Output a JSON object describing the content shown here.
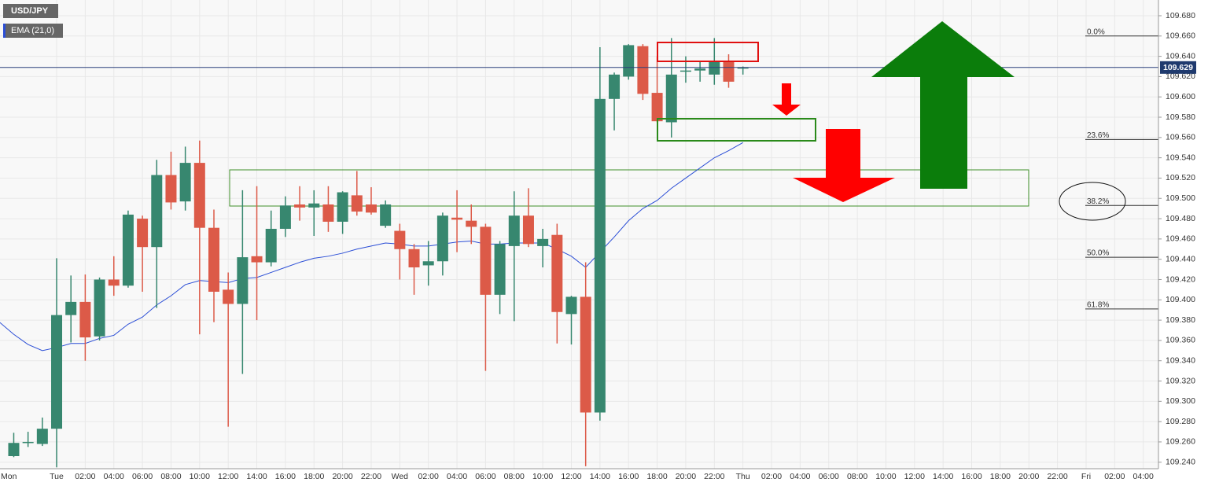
{
  "chart_data": {
    "type": "candlestick",
    "title": "USD/JPY",
    "categories": [
      "Mon",
      null,
      null,
      null,
      "Tue",
      null,
      "02:00",
      null,
      "04:00",
      null,
      "06:00",
      null,
      "08:00",
      null,
      "10:00",
      null,
      "12:00",
      null,
      "14:00",
      null,
      "16:00",
      null,
      "18:00",
      null,
      "20:00",
      null,
      "22:00",
      null,
      "Wed",
      null,
      "02:00",
      null,
      "04:00",
      null,
      "06:00",
      null,
      "08:00",
      null,
      "10:00",
      null,
      "12:00",
      null,
      "14:00",
      null,
      "16:00",
      null,
      "18:00",
      null,
      "20:00",
      null,
      "22:00",
      null,
      "Thu",
      null,
      "02:00",
      null,
      "04:00",
      null,
      "06:00",
      null,
      "08:00",
      null,
      "10:00",
      null,
      "12:00",
      null,
      "14:00",
      null,
      "16:00",
      null,
      "18:00",
      null,
      "20:00",
      null,
      "22:00",
      null,
      "Fri",
      null,
      "02:00",
      null,
      "04:00",
      null
    ],
    "open": [
      null,
      109.246,
      109.259,
      109.258,
      109.273,
      109.385,
      109.398,
      109.364,
      109.42,
      109.414,
      109.48,
      109.452,
      109.523,
      109.497,
      109.535,
      109.471,
      109.41,
      109.396,
      109.443,
      109.437,
      109.47,
      109.494,
      109.491,
      109.494,
      109.477,
      109.503,
      109.494,
      109.473,
      109.468,
      109.45,
      109.434,
      109.438,
      109.481,
      109.478,
      109.472,
      109.405,
      109.453,
      109.483,
      109.453,
      109.464,
      109.386,
      109.403,
      109.289,
      109.598,
      109.62,
      109.65,
      109.604,
      109.575,
      109.625,
      109.626,
      109.622,
      109.635,
      109.629,
      null,
      null,
      null,
      null,
      null,
      null,
      null,
      null,
      null,
      null,
      null,
      null,
      null,
      null,
      null,
      null,
      null,
      null,
      null,
      null,
      null,
      null,
      null,
      null,
      null,
      null,
      null,
      null,
      null
    ],
    "high": [
      null,
      109.269,
      109.27,
      109.284,
      109.441,
      109.424,
      109.425,
      109.422,
      109.443,
      109.488,
      109.483,
      109.538,
      109.546,
      109.551,
      109.557,
      109.489,
      109.427,
      109.508,
      109.512,
      109.488,
      109.502,
      109.512,
      109.508,
      109.512,
      109.507,
      109.527,
      109.511,
      109.498,
      109.475,
      109.455,
      109.458,
      109.486,
      109.508,
      109.494,
      109.475,
      109.458,
      109.507,
      109.51,
      109.47,
      109.475,
      109.404,
      109.437,
      109.649,
      109.624,
      109.652,
      109.652,
      109.64,
      109.658,
      109.64,
      109.635,
      109.658,
      109.642,
      109.63,
      null,
      null,
      null,
      null,
      null,
      null,
      null,
      null,
      null,
      null,
      null,
      null,
      null,
      null,
      null,
      null,
      null,
      null,
      null,
      null,
      null,
      null,
      null,
      null,
      null,
      null,
      null,
      null,
      null
    ],
    "low": [
      null,
      109.245,
      109.255,
      109.256,
      109.235,
      109.358,
      109.34,
      109.36,
      109.404,
      109.412,
      109.408,
      109.392,
      109.489,
      109.488,
      109.366,
      109.378,
      109.275,
      109.327,
      109.38,
      109.433,
      109.462,
      109.478,
      109.463,
      109.467,
      109.465,
      109.483,
      109.484,
      109.471,
      109.42,
      109.405,
      109.414,
      109.424,
      109.447,
      109.455,
      109.33,
      109.386,
      109.379,
      109.452,
      109.432,
      109.357,
      109.356,
      109.236,
      109.281,
      109.567,
      109.617,
      109.597,
      109.575,
      109.56,
      109.614,
      109.615,
      109.612,
      109.609,
      109.622,
      null,
      null,
      null,
      null,
      null,
      null,
      null,
      null,
      null,
      null,
      null,
      null,
      null,
      null,
      null,
      null,
      null,
      null,
      null,
      null,
      null,
      null,
      null,
      null,
      null,
      null,
      null,
      null,
      null
    ],
    "close": [
      null,
      109.259,
      109.26,
      109.273,
      109.385,
      109.398,
      109.363,
      109.42,
      109.414,
      109.484,
      109.452,
      109.523,
      109.496,
      109.535,
      109.471,
      109.408,
      109.396,
      109.442,
      109.437,
      109.47,
      109.493,
      109.491,
      109.495,
      109.477,
      109.506,
      109.487,
      109.486,
      109.494,
      109.45,
      109.432,
      109.438,
      109.483,
      109.479,
      109.472,
      109.405,
      109.455,
      109.483,
      109.455,
      109.46,
      109.388,
      109.403,
      109.289,
      109.598,
      109.622,
      109.651,
      109.603,
      109.576,
      109.622,
      109.626,
      109.628,
      109.635,
      109.615,
      109.629,
      null,
      null,
      null,
      null,
      null,
      null,
      null,
      null,
      null,
      null,
      null,
      null,
      null,
      null,
      null,
      null,
      null,
      null,
      null,
      null,
      null,
      null,
      null,
      null,
      null,
      null,
      null,
      null,
      null
    ],
    "up_color": "#37876f",
    "down_color": "#dc5a48",
    "series": [
      {
        "name": "EMA (21,0)",
        "color": "#2b4ed6",
        "values": [
          109.378,
          109.366,
          109.356,
          109.35,
          109.353,
          109.357,
          109.357,
          109.362,
          109.365,
          109.376,
          109.383,
          109.395,
          109.404,
          109.415,
          109.419,
          109.418,
          109.417,
          109.421,
          109.422,
          109.427,
          109.432,
          109.437,
          109.441,
          109.443,
          109.446,
          109.45,
          109.453,
          109.456,
          109.455,
          109.453,
          109.453,
          109.455,
          109.457,
          109.458,
          109.455,
          109.455,
          109.456,
          109.456,
          109.456,
          109.45,
          109.443,
          109.432,
          109.447,
          109.462,
          109.478,
          109.49,
          109.498,
          109.51,
          109.52,
          109.53,
          109.54,
          109.547,
          109.555,
          null,
          null,
          null,
          null,
          null,
          null,
          null,
          null,
          null,
          null,
          null,
          null,
          null,
          null,
          null,
          null,
          null,
          null,
          null,
          null,
          null,
          null,
          null,
          null,
          null,
          null,
          null,
          null,
          null
        ]
      }
    ],
    "last_price": 109.629,
    "ylim": [
      109.2336,
      109.6955
    ],
    "yticks": [
      {
        "value": 109.24,
        "label": "109.240"
      },
      {
        "value": 109.26,
        "label": "109.260"
      },
      {
        "value": 109.28,
        "label": "109.280"
      },
      {
        "value": 109.3,
        "label": "109.300"
      },
      {
        "value": 109.32,
        "label": "109.320"
      },
      {
        "value": 109.34,
        "label": "109.340"
      },
      {
        "value": 109.36,
        "label": "109.360"
      },
      {
        "value": 109.38,
        "label": "109.380"
      },
      {
        "value": 109.4,
        "label": "109.400"
      },
      {
        "value": 109.42,
        "label": "109.420"
      },
      {
        "value": 109.44,
        "label": "109.440"
      },
      {
        "value": 109.46,
        "label": "109.460"
      },
      {
        "value": 109.48,
        "label": "109.480"
      },
      {
        "value": 109.5,
        "label": "109.500"
      },
      {
        "value": 109.52,
        "label": "109.520"
      },
      {
        "value": 109.54,
        "label": "109.540"
      },
      {
        "value": 109.56,
        "label": "109.560"
      },
      {
        "value": 109.58,
        "label": "109.580"
      },
      {
        "value": 109.6,
        "label": "109.600"
      },
      {
        "value": 109.62,
        "label": "109.620"
      },
      {
        "value": 109.64,
        "label": "109.640"
      },
      {
        "value": 109.66,
        "label": "109.660"
      },
      {
        "value": 109.68,
        "label": "109.680"
      }
    ],
    "fib_levels": [
      {
        "label": "0.0%",
        "value": 109.66
      },
      {
        "label": "23.6%",
        "value": 109.558
      },
      {
        "label": "38.2%",
        "value": 109.493
      },
      {
        "label": "50.0%",
        "value": 109.442
      },
      {
        "label": "61.8%",
        "value": 109.391
      }
    ],
    "grid": true
  }
}
